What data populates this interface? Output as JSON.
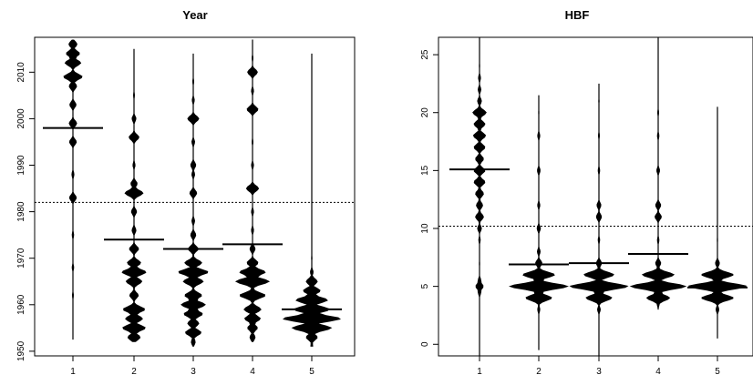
{
  "chart_data": [
    {
      "type": "beanplot",
      "title": "Year",
      "xlabel": "",
      "ylabel": "",
      "categories": [
        "1",
        "2",
        "3",
        "4",
        "5"
      ],
      "ylim": [
        1949,
        2017.5
      ],
      "yticks": [
        1950,
        1960,
        1970,
        1980,
        1990,
        2000,
        2010
      ],
      "reference_line": 1982,
      "beans": [
        {
          "category": "1",
          "mean": 1998,
          "range": [
            1952.5,
            2017
          ],
          "density": [
            [
              1962,
              0.03
            ],
            [
              1968,
              0.04
            ],
            [
              1975,
              0.04
            ],
            [
              1983,
              0.13
            ],
            [
              1988,
              0.05
            ],
            [
              1995,
              0.13
            ],
            [
              1999,
              0.14
            ],
            [
              2003,
              0.12
            ],
            [
              2007,
              0.14
            ],
            [
              2009,
              0.33
            ],
            [
              2012,
              0.28
            ],
            [
              2014,
              0.24
            ],
            [
              2016,
              0.15
            ]
          ]
        },
        {
          "category": "2",
          "mean": 1974,
          "range": [
            1952,
            2015
          ],
          "density": [
            [
              1953,
              0.22
            ],
            [
              1955,
              0.4
            ],
            [
              1957,
              0.3
            ],
            [
              1959,
              0.38
            ],
            [
              1962,
              0.16
            ],
            [
              1965,
              0.28
            ],
            [
              1967,
              0.42
            ],
            [
              1969,
              0.24
            ],
            [
              1972,
              0.17
            ],
            [
              1976,
              0.08
            ],
            [
              1980,
              0.1
            ],
            [
              1984,
              0.32
            ],
            [
              1986,
              0.12
            ],
            [
              1990,
              0.05
            ],
            [
              1996,
              0.18
            ],
            [
              2000,
              0.08
            ],
            [
              2005,
              0.03
            ]
          ]
        },
        {
          "category": "3",
          "mean": 1972,
          "range": [
            1951,
            2014
          ],
          "density": [
            [
              1952,
              0.08
            ],
            [
              1954,
              0.28
            ],
            [
              1956,
              0.2
            ],
            [
              1958,
              0.33
            ],
            [
              1960,
              0.42
            ],
            [
              1962,
              0.3
            ],
            [
              1965,
              0.35
            ],
            [
              1967,
              0.52
            ],
            [
              1969,
              0.3
            ],
            [
              1972,
              0.18
            ],
            [
              1975,
              0.1
            ],
            [
              1978,
              0.06
            ],
            [
              1984,
              0.13
            ],
            [
              1988,
              0.06
            ],
            [
              1990,
              0.1
            ],
            [
              1995,
              0.06
            ],
            [
              2000,
              0.2
            ],
            [
              2004,
              0.05
            ],
            [
              2008,
              0.03
            ]
          ]
        },
        {
          "category": "4",
          "mean": 1973,
          "range": [
            1952,
            2017
          ],
          "density": [
            [
              1953,
              0.1
            ],
            [
              1955,
              0.18
            ],
            [
              1957,
              0.28
            ],
            [
              1959,
              0.3
            ],
            [
              1962,
              0.45
            ],
            [
              1965,
              0.58
            ],
            [
              1967,
              0.45
            ],
            [
              1969,
              0.2
            ],
            [
              1972,
              0.1
            ],
            [
              1976,
              0.05
            ],
            [
              1980,
              0.05
            ],
            [
              1985,
              0.22
            ],
            [
              1990,
              0.05
            ],
            [
              1995,
              0.03
            ],
            [
              2002,
              0.2
            ],
            [
              2006,
              0.05
            ],
            [
              2010,
              0.18
            ],
            [
              2013,
              0.03
            ]
          ]
        },
        {
          "category": "5",
          "mean": 1959,
          "range": [
            1951,
            2014
          ],
          "density": [
            [
              1951,
              0.05
            ],
            [
              1953,
              0.2
            ],
            [
              1955,
              0.68
            ],
            [
              1957,
              1.0
            ],
            [
              1959,
              0.62
            ],
            [
              1961,
              0.55
            ],
            [
              1963,
              0.3
            ],
            [
              1965,
              0.2
            ],
            [
              1967,
              0.06
            ],
            [
              1970,
              0.02
            ]
          ]
        }
      ]
    },
    {
      "type": "beanplot",
      "title": "HBF",
      "xlabel": "",
      "ylabel": "",
      "categories": [
        "1",
        "2",
        "3",
        "4",
        "5"
      ],
      "ylim": [
        -1,
        26.5
      ],
      "yticks": [
        0,
        5,
        10,
        15,
        20,
        25
      ],
      "reference_line": 10.2,
      "beans": [
        {
          "category": "1",
          "mean": 15.1,
          "range": [
            -1,
            26.5
          ],
          "density": [
            [
              4.5,
              0.06
            ],
            [
              5,
              0.14
            ],
            [
              5.5,
              0.06
            ],
            [
              7,
              0.02
            ],
            [
              9,
              0.04
            ],
            [
              10,
              0.08
            ],
            [
              11,
              0.15
            ],
            [
              12,
              0.12
            ],
            [
              13,
              0.15
            ],
            [
              14,
              0.2
            ],
            [
              15,
              0.2
            ],
            [
              16,
              0.15
            ],
            [
              17,
              0.2
            ],
            [
              18,
              0.22
            ],
            [
              19,
              0.2
            ],
            [
              20,
              0.24
            ],
            [
              21,
              0.08
            ],
            [
              22,
              0.06
            ],
            [
              23,
              0.05
            ],
            [
              24,
              0.02
            ]
          ]
        },
        {
          "category": "2",
          "mean": 6.9,
          "range": [
            -0.5,
            21.5
          ],
          "density": [
            [
              3,
              0.05
            ],
            [
              4,
              0.45
            ],
            [
              5,
              1.0
            ],
            [
              6,
              0.55
            ],
            [
              7,
              0.12
            ],
            [
              8,
              0.06
            ],
            [
              10,
              0.07
            ],
            [
              12,
              0.05
            ],
            [
              15,
              0.06
            ],
            [
              18,
              0.05
            ],
            [
              20,
              0.02
            ]
          ]
        },
        {
          "category": "3",
          "mean": 7.0,
          "range": [
            -1,
            22.5
          ],
          "density": [
            [
              3,
              0.06
            ],
            [
              4,
              0.45
            ],
            [
              5,
              1.0
            ],
            [
              6,
              0.52
            ],
            [
              7,
              0.1
            ],
            [
              9,
              0.04
            ],
            [
              11,
              0.1
            ],
            [
              12,
              0.08
            ],
            [
              15,
              0.04
            ],
            [
              18,
              0.03
            ],
            [
              21,
              0.02
            ]
          ]
        },
        {
          "category": "4",
          "mean": 7.8,
          "range": [
            3,
            26.5
          ],
          "density": [
            [
              3.5,
              0.05
            ],
            [
              4,
              0.4
            ],
            [
              5,
              0.95
            ],
            [
              6,
              0.55
            ],
            [
              7,
              0.1
            ],
            [
              9,
              0.04
            ],
            [
              11,
              0.12
            ],
            [
              12,
              0.1
            ],
            [
              15,
              0.06
            ],
            [
              18,
              0.04
            ],
            [
              20,
              0.03
            ]
          ]
        },
        {
          "category": "5",
          "mean": 4.9,
          "range": [
            0.5,
            20.5
          ],
          "density": [
            [
              3,
              0.06
            ],
            [
              4,
              0.55
            ],
            [
              5,
              1.0
            ],
            [
              6,
              0.55
            ],
            [
              7,
              0.08
            ],
            [
              9,
              0.02
            ]
          ]
        }
      ]
    }
  ]
}
